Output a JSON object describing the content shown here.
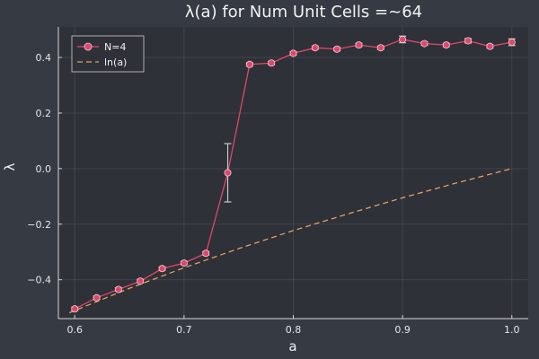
{
  "chart_data": {
    "type": "line",
    "title": "λ(a) for Num Unit Cells =~64",
    "xlabel": "a",
    "ylabel": "λ",
    "xlim": [
      0.585,
      1.015
    ],
    "ylim": [
      -0.54,
      0.51
    ],
    "xticks": [
      0.6,
      0.7,
      0.8,
      0.9,
      1.0
    ],
    "xtick_labels": [
      "0.6",
      "0.7",
      "0.8",
      "0.9",
      "1.0"
    ],
    "yticks": [
      -0.4,
      -0.2,
      0.0,
      0.2,
      0.4
    ],
    "ytick_labels": [
      "−0.4",
      "−0.2",
      "0.0",
      "0.2",
      "0.4"
    ],
    "grid": true,
    "legend_position": "top-left",
    "colors": {
      "background": "#363a42",
      "plot_background": "#2e3138",
      "series_main": "#e2456a",
      "series_ref": "#e0a060",
      "errorbar": "#c8c8c8"
    },
    "series": [
      {
        "name": "N=4",
        "style": "line-markers",
        "x": [
          0.6,
          0.62,
          0.64,
          0.66,
          0.68,
          0.7,
          0.72,
          0.74,
          0.76,
          0.78,
          0.8,
          0.82,
          0.84,
          0.86,
          0.88,
          0.9,
          0.92,
          0.94,
          0.96,
          0.98,
          1.0
        ],
        "y": [
          -0.505,
          -0.465,
          -0.435,
          -0.405,
          -0.36,
          -0.34,
          -0.305,
          -0.015,
          0.375,
          0.38,
          0.415,
          0.435,
          0.43,
          0.445,
          0.435,
          0.465,
          0.45,
          0.445,
          0.46,
          0.44,
          0.455
        ],
        "yerr": [
          0.006,
          0.006,
          0.006,
          0.006,
          0.006,
          0.006,
          0.006,
          0.105,
          0.006,
          0.006,
          0.006,
          0.006,
          0.006,
          0.006,
          0.006,
          0.012,
          0.006,
          0.006,
          0.008,
          0.006,
          0.012
        ]
      },
      {
        "name": "ln(a)",
        "style": "dashed",
        "x": [
          0.595,
          0.6,
          0.65,
          0.7,
          0.75,
          0.8,
          0.85,
          0.9,
          0.95,
          1.0
        ],
        "y": [
          -0.519,
          -0.511,
          -0.431,
          -0.357,
          -0.288,
          -0.223,
          -0.163,
          -0.105,
          -0.051,
          0.0
        ]
      }
    ]
  }
}
